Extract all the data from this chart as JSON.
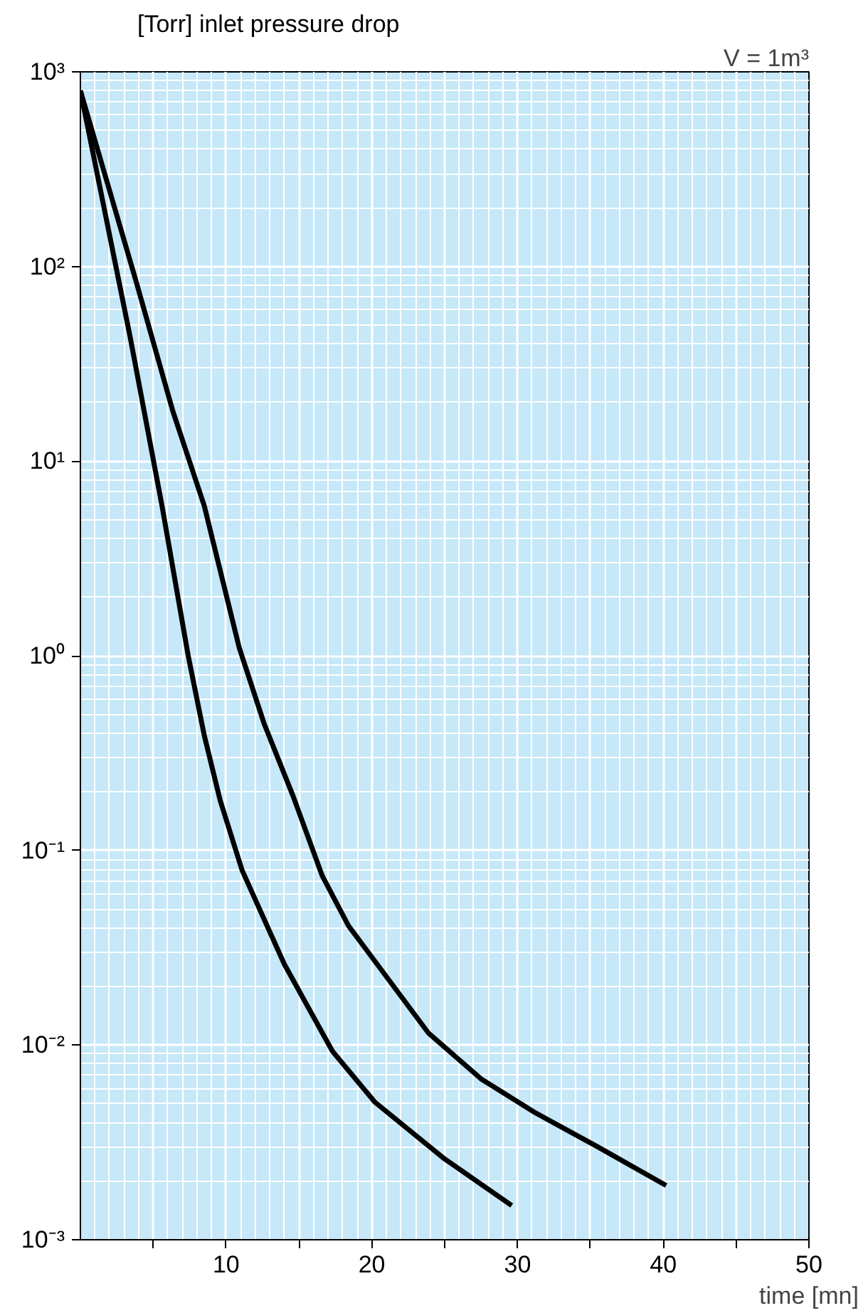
{
  "chart_data": {
    "type": "line",
    "title": "[Torr] inlet pressure drop",
    "xlabel": "time [mn]",
    "annotations": [
      "V = 1m³"
    ],
    "x": [
      0,
      3.4,
      5.6,
      7.4,
      8.5,
      9.6,
      11.1,
      14,
      17.3,
      20.2,
      25,
      29.6
    ],
    "series": [
      {
        "color": "#000000",
        "x": [
          0,
          3.8,
          6.35,
          8.5,
          10.9,
          12.6,
          14.6,
          16.6,
          18.4,
          23.9,
          27.5,
          31.2,
          35.5,
          40.2
        ],
        "values": [
          800,
          85,
          18,
          5.9,
          1.1,
          0.45,
          0.19,
          0.074,
          0.041,
          0.0115,
          0.0067,
          0.0045,
          0.003,
          0.0019
        ]
      },
      {
        "color": "#000000",
        "values": [
          800,
          44,
          5.9,
          1.0,
          0.39,
          0.18,
          0.079,
          0.026,
          0.0093,
          0.0051,
          0.0026,
          0.0015
        ]
      }
    ],
    "xlim": [
      0,
      50
    ],
    "xticks": [
      {
        "value": 5,
        "label": null
      },
      10,
      {
        "value": 15,
        "label": null
      },
      20,
      {
        "value": 25,
        "label": null
      },
      30,
      {
        "value": 35,
        "label": null
      },
      40,
      {
        "value": 45,
        "label": null
      },
      50
    ],
    "ylim": [
      0.001,
      1000
    ],
    "log": "y",
    "yticks": [
      {
        "value": 0.001,
        "label": "10⁻³"
      },
      {
        "value": 0.01,
        "label": "10⁻²"
      },
      {
        "value": 0.1,
        "label": "10⁻¹"
      },
      {
        "value": 1,
        "label": "10⁰"
      },
      {
        "value": 10,
        "label": "10¹"
      },
      {
        "value": 100,
        "label": "10²"
      },
      {
        "value": 1000,
        "label": "10³"
      }
    ],
    "grid": true,
    "line_style": "solid",
    "marker": "none"
  }
}
